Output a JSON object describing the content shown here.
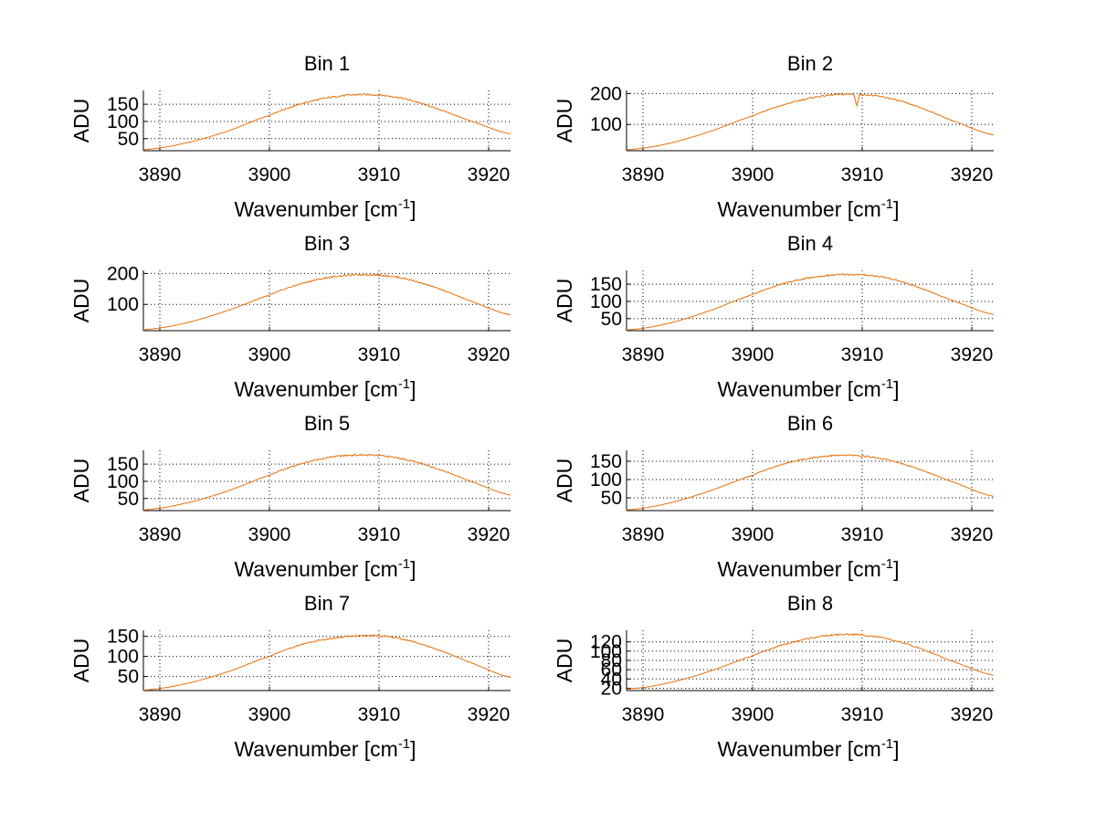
{
  "figure": {
    "background": "#ffffff",
    "line_color": "#e8700a"
  },
  "chart_data": [
    {
      "type": "line",
      "title": "Bin 1",
      "xlabel": "Wavenumber [cm",
      "xlabel_sup": "-1",
      "xlabel_close": "]",
      "ylabel": "ADU",
      "xlim": [
        3888.5,
        3922
      ],
      "ylim": [
        15,
        190
      ],
      "xticks": [
        3890,
        3900,
        3910,
        3920
      ],
      "xtick_labels": [
        "3890",
        "3900",
        "3910",
        "3920"
      ],
      "yticks": [
        50,
        100,
        150
      ],
      "ytick_labels": [
        "50",
        "100",
        "150"
      ],
      "series": [
        {
          "name": "Bin 1",
          "x": [
            3888.5,
            3892,
            3896,
            3900,
            3903,
            3906,
            3909,
            3912,
            3915,
            3918,
            3922
          ],
          "y": [
            18,
            35,
            70,
            118,
            152,
            172,
            178,
            168,
            140,
            105,
            64
          ]
        }
      ]
    },
    {
      "type": "line",
      "title": "Bin 2",
      "xlabel": "Wavenumber [cm",
      "xlabel_sup": "-1",
      "xlabel_close": "]",
      "ylabel": "ADU",
      "xlim": [
        3888.5,
        3922
      ],
      "ylim": [
        15,
        210
      ],
      "xticks": [
        3890,
        3900,
        3910,
        3920
      ],
      "xtick_labels": [
        "3890",
        "3900",
        "3910",
        "3920"
      ],
      "yticks": [
        100,
        200
      ],
      "ytick_labels": [
        "100",
        "200"
      ],
      "series": [
        {
          "name": "Bin 2",
          "x": [
            3888.5,
            3892,
            3896,
            3900,
            3903,
            3906,
            3909,
            3912,
            3915,
            3918,
            3922
          ],
          "y": [
            18,
            36,
            76,
            128,
            165,
            190,
            198,
            188,
            158,
            115,
            66
          ]
        }
      ]
    },
    {
      "type": "line",
      "title": "Bin 3",
      "xlabel": "Wavenumber [cm",
      "xlabel_sup": "-1",
      "xlabel_close": "]",
      "ylabel": "ADU",
      "xlim": [
        3888.5,
        3922
      ],
      "ylim": [
        15,
        210
      ],
      "xticks": [
        3890,
        3900,
        3910,
        3920
      ],
      "xtick_labels": [
        "3890",
        "3900",
        "3910",
        "3920"
      ],
      "yticks": [
        100,
        200
      ],
      "ytick_labels": [
        "100",
        "200"
      ],
      "series": [
        {
          "name": "Bin 3",
          "x": [
            3888.5,
            3892,
            3896,
            3900,
            3903,
            3906,
            3909,
            3912,
            3915,
            3918,
            3922
          ],
          "y": [
            18,
            37,
            78,
            130,
            168,
            190,
            196,
            186,
            156,
            115,
            66
          ]
        }
      ]
    },
    {
      "type": "line",
      "title": "Bin 4",
      "xlabel": "Wavenumber [cm",
      "xlabel_sup": "-1",
      "xlabel_close": "]",
      "ylabel": "ADU",
      "xlim": [
        3888.5,
        3922
      ],
      "ylim": [
        15,
        190
      ],
      "xticks": [
        3890,
        3900,
        3910,
        3920
      ],
      "xtick_labels": [
        "3890",
        "3900",
        "3910",
        "3920"
      ],
      "yticks": [
        50,
        100,
        150
      ],
      "ytick_labels": [
        "50",
        "100",
        "150"
      ],
      "series": [
        {
          "name": "Bin 4",
          "x": [
            3888.5,
            3892,
            3896,
            3900,
            3903,
            3906,
            3909,
            3912,
            3915,
            3918,
            3922
          ],
          "y": [
            17,
            34,
            72,
            120,
            153,
            172,
            178,
            170,
            142,
            105,
            62
          ]
        }
      ]
    },
    {
      "type": "line",
      "title": "Bin 5",
      "xlabel": "Wavenumber [cm",
      "xlabel_sup": "-1",
      "xlabel_close": "]",
      "ylabel": "ADU",
      "xlim": [
        3888.5,
        3922
      ],
      "ylim": [
        15,
        190
      ],
      "xticks": [
        3890,
        3900,
        3910,
        3920
      ],
      "xtick_labels": [
        "3890",
        "3900",
        "3910",
        "3920"
      ],
      "yticks": [
        50,
        100,
        150
      ],
      "ytick_labels": [
        "50",
        "100",
        "150"
      ],
      "series": [
        {
          "name": "Bin 5",
          "x": [
            3888.5,
            3892,
            3896,
            3900,
            3903,
            3906,
            3909,
            3912,
            3915,
            3918,
            3922
          ],
          "y": [
            17,
            34,
            70,
            118,
            152,
            172,
            176,
            166,
            140,
            104,
            60
          ]
        }
      ]
    },
    {
      "type": "line",
      "title": "Bin 6",
      "xlabel": "Wavenumber [cm",
      "xlabel_sup": "-1",
      "xlabel_close": "]",
      "ylabel": "ADU",
      "xlim": [
        3888.5,
        3922
      ],
      "ylim": [
        15,
        180
      ],
      "xticks": [
        3890,
        3900,
        3910,
        3920
      ],
      "xtick_labels": [
        "3890",
        "3900",
        "3910",
        "3920"
      ],
      "yticks": [
        50,
        100,
        150
      ],
      "ytick_labels": [
        "50",
        "100",
        "150"
      ],
      "series": [
        {
          "name": "Bin 6",
          "x": [
            3888.5,
            3892,
            3896,
            3900,
            3903,
            3906,
            3909,
            3912,
            3915,
            3918,
            3922
          ],
          "y": [
            17,
            33,
            68,
            112,
            144,
            162,
            166,
            156,
            130,
            96,
            54
          ]
        }
      ]
    },
    {
      "type": "line",
      "title": "Bin 7",
      "xlabel": "Wavenumber [cm",
      "xlabel_sup": "-1",
      "xlabel_close": "]",
      "ylabel": "ADU",
      "xlim": [
        3888.5,
        3922
      ],
      "ylim": [
        15,
        165
      ],
      "xticks": [
        3890,
        3900,
        3910,
        3920
      ],
      "xtick_labels": [
        "3890",
        "3900",
        "3910",
        "3920"
      ],
      "yticks": [
        50,
        100,
        150
      ],
      "ytick_labels": [
        "50",
        "100",
        "150"
      ],
      "series": [
        {
          "name": "Bin 7",
          "x": [
            3888.5,
            3892,
            3896,
            3900,
            3903,
            3906,
            3909,
            3912,
            3915,
            3918,
            3922
          ],
          "y": [
            16,
            30,
            60,
            100,
            130,
            146,
            152,
            144,
            120,
            88,
            48
          ]
        }
      ]
    },
    {
      "type": "line",
      "title": "Bin 8",
      "xlabel": "Wavenumber [cm",
      "xlabel_sup": "-1",
      "xlabel_close": "]",
      "ylabel": "ADU",
      "xlim": [
        3888.5,
        3922
      ],
      "ylim": [
        15,
        145
      ],
      "xticks": [
        3890,
        3900,
        3910,
        3920
      ],
      "xtick_labels": [
        "3890",
        "3900",
        "3910",
        "3920"
      ],
      "yticks": [
        20,
        40,
        60,
        80,
        100,
        120
      ],
      "ytick_labels": [
        "20",
        "40",
        "60",
        "80",
        "100",
        "120"
      ],
      "series": [
        {
          "name": "Bin 8",
          "x": [
            3888.5,
            3892,
            3896,
            3900,
            3903,
            3906,
            3909,
            3912,
            3915,
            3918,
            3922
          ],
          "y": [
            18,
            30,
            56,
            90,
            115,
            131,
            136,
            128,
            108,
            80,
            48
          ]
        }
      ]
    }
  ]
}
